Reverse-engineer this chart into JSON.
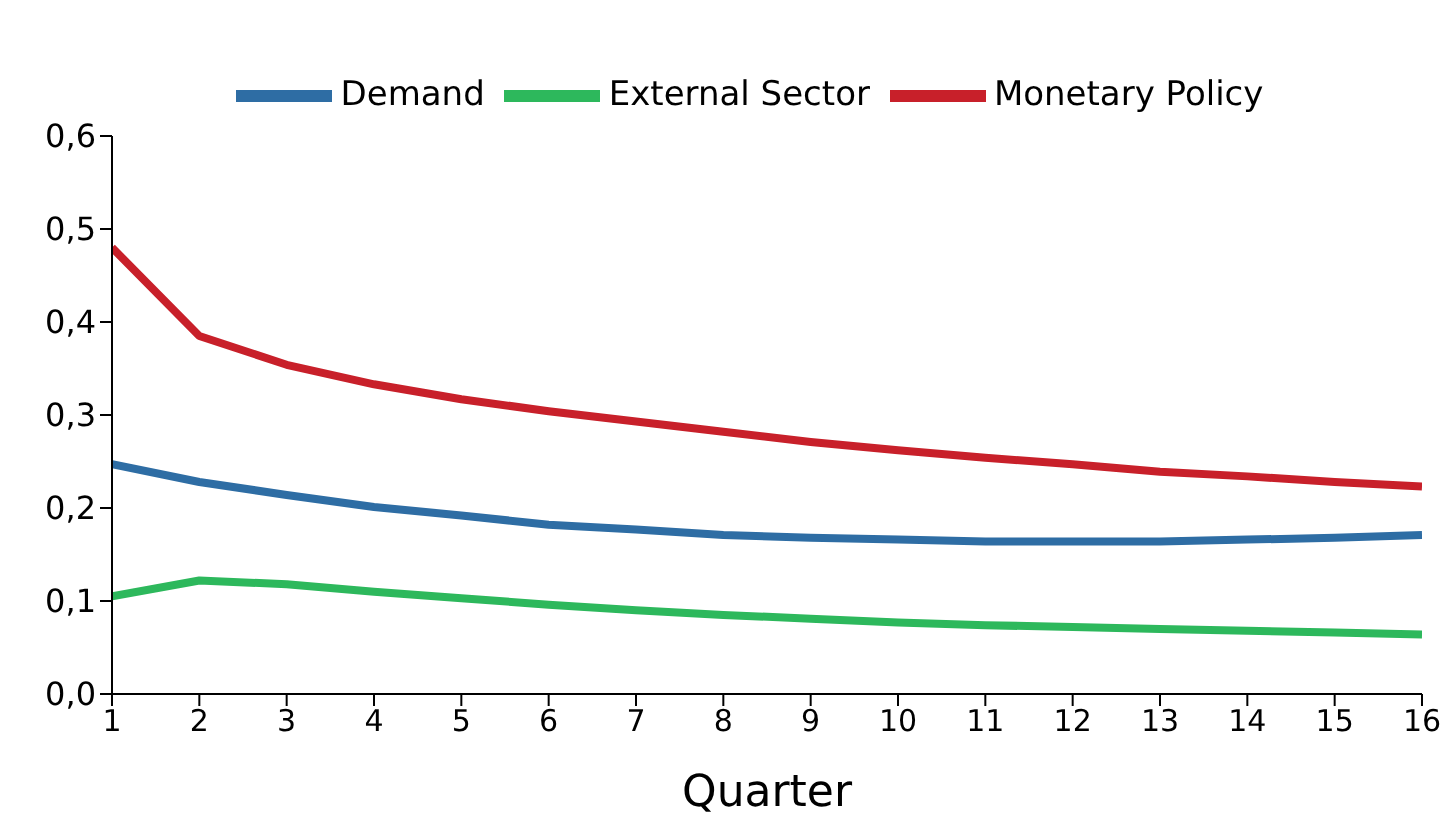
{
  "chart_data": {
    "type": "line",
    "xlabel": "Quarter",
    "x": [
      1,
      2,
      3,
      4,
      5,
      6,
      7,
      8,
      9,
      10,
      11,
      12,
      13,
      14,
      15,
      16
    ],
    "xlim": [
      1,
      16
    ],
    "xticks": [
      1,
      2,
      3,
      4,
      5,
      6,
      7,
      8,
      9,
      10,
      11,
      12,
      13,
      14,
      15,
      16
    ],
    "ylim": [
      0,
      0.6
    ],
    "yticks": [
      {
        "value": 0,
        "label": "0,0"
      },
      {
        "value": 0.1,
        "label": "0,1"
      },
      {
        "value": 0.2,
        "label": "0,2"
      },
      {
        "value": 0.3,
        "label": "0,3"
      },
      {
        "value": 0.4,
        "label": "0,4"
      },
      {
        "value": 0.5,
        "label": "0,5"
      },
      {
        "value": 0.6,
        "label": "0,6"
      }
    ],
    "grid": false,
    "legend": "top",
    "marker": "none",
    "line_style": "solid",
    "series": [
      {
        "name": "Demand",
        "color": "#2e6da4",
        "values": [
          0.247,
          0.228,
          0.214,
          0.201,
          0.192,
          0.182,
          0.177,
          0.171,
          0.168,
          0.166,
          0.164,
          0.164,
          0.164,
          0.166,
          0.168,
          0.171
        ]
      },
      {
        "name": "Monetary Policy",
        "color": "#c8202a",
        "values": [
          0.48,
          0.385,
          0.354,
          0.333,
          0.317,
          0.304,
          0.293,
          0.282,
          0.271,
          0.262,
          0.254,
          0.247,
          0.239,
          0.234,
          0.228,
          0.223
        ]
      },
      {
        "name": "External Sector",
        "color": "#2db85c",
        "values": [
          0.105,
          0.122,
          0.118,
          0.11,
          0.103,
          0.096,
          0.09,
          0.085,
          0.081,
          0.077,
          0.074,
          0.072,
          0.07,
          0.068,
          0.066,
          0.064
        ]
      }
    ]
  }
}
